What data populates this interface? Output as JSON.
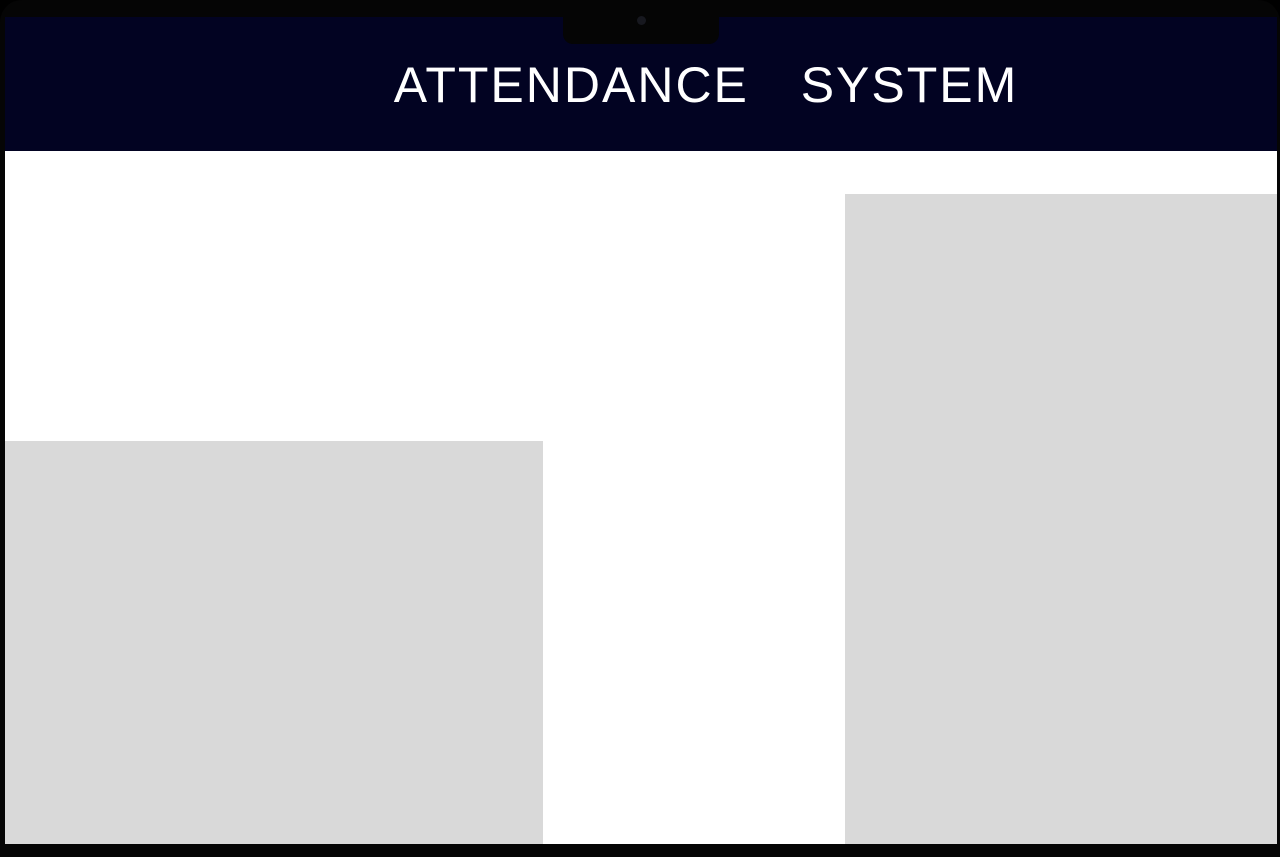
{
  "app": {
    "title": "ATTENDANCE  SYSTEM"
  },
  "colors": {
    "header_background": "#020322",
    "header_text": "#ffffff",
    "content_background": "#ffffff",
    "placeholder_panel": "#d9d9d9",
    "device_frame": "#050505"
  },
  "icons": {
    "camera": "camera-icon"
  }
}
